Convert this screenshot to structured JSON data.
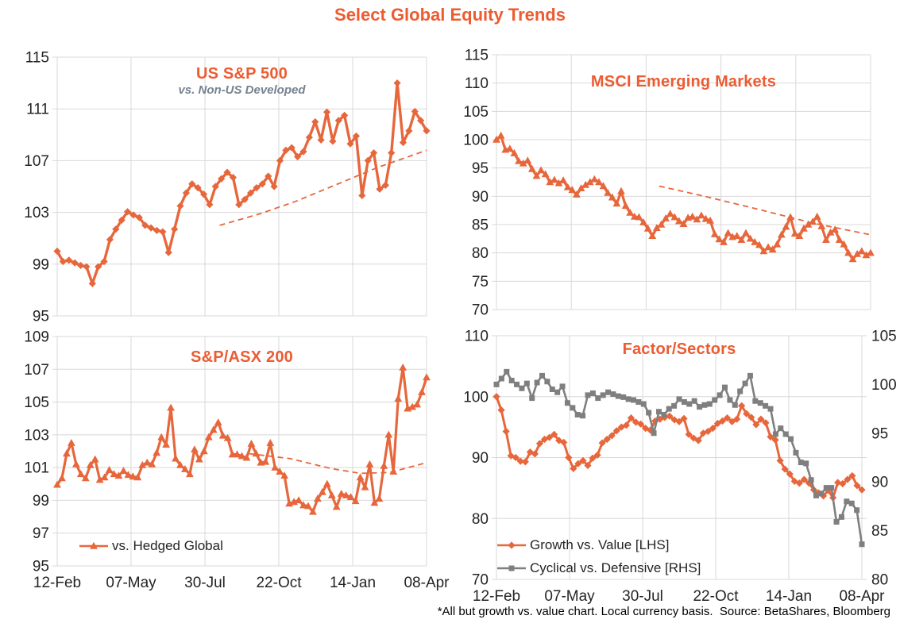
{
  "page_title": "Select Global Equity Trends",
  "footer_note": "*All but growth vs. value chart. Local currency basis.  Source: BetaShares, Bloomberg",
  "colors": {
    "title_orange": "#ED5B31",
    "series_orange": "#E7673C",
    "series_gray": "#7F7F7F",
    "subtitle_gray": "#76828E",
    "gridline": "#D8D8D8",
    "text_dark": "#242424"
  },
  "chart_data": [
    {
      "id": "us-sp500",
      "type": "line",
      "title": "US S&P 500",
      "subtitle": "vs. Non-US Developed",
      "ylim": [
        95,
        115
      ],
      "yticks": [
        95,
        99,
        103,
        107,
        111,
        115
      ],
      "grid": true,
      "show_x_labels": false,
      "series": [
        {
          "name": "US S&P 500 vs. Non-US Developed",
          "axis": "left",
          "color": "#E7673C",
          "marker": "diamond",
          "width": 3.4,
          "values": [
            100.0,
            99.2,
            99.3,
            99.1,
            98.9,
            98.8,
            97.5,
            98.8,
            99.2,
            100.9,
            101.7,
            102.4,
            103.05,
            102.8,
            102.6,
            102.0,
            101.8,
            101.6,
            101.5,
            99.9,
            101.7,
            103.5,
            104.5,
            105.2,
            104.9,
            104.4,
            103.6,
            105.0,
            105.6,
            106.1,
            105.7,
            103.6,
            104.0,
            104.5,
            104.9,
            105.2,
            105.8,
            105.0,
            107.0,
            107.8,
            108.0,
            107.3,
            107.7,
            108.8,
            110.0,
            108.6,
            110.75,
            108.5,
            110.1,
            110.5,
            108.3,
            108.9,
            104.3,
            107.0,
            107.6,
            104.8,
            105.1,
            107.6,
            113.0,
            108.4,
            109.3,
            110.8,
            110.1,
            109.3
          ]
        }
      ],
      "trendline": {
        "style": "dashed",
        "color": "#E7673C",
        "points": [
          [
            0.44,
            102.0
          ],
          [
            0.55,
            102.9
          ],
          [
            0.65,
            103.9
          ],
          [
            0.76,
            105.2
          ],
          [
            0.87,
            106.5
          ],
          [
            1.0,
            107.8
          ]
        ]
      }
    },
    {
      "id": "msci-em",
      "type": "line",
      "title": "MSCI Emerging Markets",
      "ylim": [
        70,
        115
      ],
      "yticks": [
        70,
        75,
        80,
        85,
        90,
        95,
        100,
        105,
        110,
        115
      ],
      "grid": true,
      "show_x_labels": false,
      "series": [
        {
          "name": "MSCI Emerging Markets",
          "axis": "left",
          "color": "#E7673C",
          "marker": "triangle",
          "width": 3.2,
          "values": [
            100.0,
            100.7,
            98.2,
            98.4,
            97.6,
            96.2,
            95.8,
            96.3,
            94.8,
            93.6,
            94.6,
            93.9,
            92.5,
            92.9,
            92.3,
            92.8,
            91.6,
            91.1,
            90.3,
            91.4,
            92.0,
            92.5,
            93.0,
            92.5,
            91.8,
            90.6,
            89.8,
            88.7,
            90.9,
            88.3,
            87.1,
            86.4,
            86.3,
            85.4,
            84.3,
            83.0,
            84.4,
            85.0,
            86.1,
            86.9,
            86.3,
            85.6,
            85.1,
            86.2,
            86.4,
            85.9,
            86.6,
            86.0,
            85.7,
            83.3,
            82.4,
            81.9,
            83.5,
            82.8,
            83.0,
            82.3,
            83.5,
            82.5,
            81.9,
            81.4,
            80.3,
            81.0,
            80.6,
            81.5,
            83.2,
            84.6,
            86.3,
            83.4,
            83.0,
            84.3,
            85.0,
            85.5,
            86.4,
            84.7,
            82.3,
            83.6,
            84.1,
            82.3,
            81.5,
            80.0,
            78.9,
            79.8,
            80.3,
            79.6,
            80.0
          ]
        }
      ],
      "trendline": {
        "style": "dashed",
        "color": "#E7673C",
        "points": [
          [
            0.435,
            91.8
          ],
          [
            0.55,
            90.1
          ],
          [
            0.7,
            87.7
          ],
          [
            0.85,
            85.2
          ],
          [
            1.0,
            83.2
          ]
        ]
      }
    },
    {
      "id": "sp-asx-200",
      "type": "line",
      "title": "S&P/ASX 200",
      "ylim": [
        95,
        109
      ],
      "yticks": [
        95,
        97,
        99,
        101,
        103,
        105,
        107,
        109
      ],
      "grid": true,
      "show_x_labels": true,
      "x_categories": [
        "12-Feb",
        "07-May",
        "30-Jul",
        "22-Oct",
        "14-Jan",
        "08-Apr"
      ],
      "legend": [
        {
          "label": "vs. Hedged Global",
          "series": 0
        }
      ],
      "series": [
        {
          "name": "vs. Hedged Global",
          "axis": "left",
          "color": "#E7673C",
          "marker": "triangle",
          "width": 3.2,
          "values": [
            99.95,
            100.35,
            101.85,
            102.5,
            101.2,
            100.6,
            100.35,
            101.15,
            101.5,
            100.25,
            100.4,
            100.85,
            100.6,
            100.5,
            100.8,
            100.55,
            100.45,
            100.4,
            101.15,
            101.3,
            101.2,
            101.9,
            102.85,
            102.4,
            104.65,
            101.55,
            101.15,
            100.9,
            100.6,
            102.1,
            101.5,
            102.0,
            102.85,
            103.3,
            103.75,
            102.95,
            102.8,
            101.8,
            101.8,
            101.7,
            101.6,
            102.45,
            101.85,
            101.3,
            101.35,
            102.5,
            101.0,
            100.75,
            100.5,
            98.8,
            98.9,
            99.0,
            98.7,
            98.65,
            98.3,
            99.1,
            99.5,
            100.0,
            99.3,
            98.6,
            99.4,
            99.3,
            99.2,
            98.95,
            100.4,
            99.8,
            101.2,
            98.85,
            99.1,
            101.1,
            103.0,
            100.75,
            105.2,
            107.1,
            104.6,
            104.7,
            104.85,
            105.6,
            106.5
          ]
        }
      ],
      "trendline": {
        "style": "dashed",
        "color": "#E7673C",
        "points": [
          [
            0.52,
            101.85
          ],
          [
            0.63,
            101.55
          ],
          [
            0.74,
            100.95
          ],
          [
            0.82,
            100.65
          ],
          [
            0.9,
            100.7
          ],
          [
            1.0,
            101.3
          ]
        ]
      }
    },
    {
      "id": "factor-sectors",
      "type": "line",
      "title": "Factor/Sectors",
      "ylim": [
        70,
        110
      ],
      "yticks": [
        70,
        80,
        90,
        100,
        110
      ],
      "ylim_right": [
        80,
        105
      ],
      "yticks_right": [
        80,
        85,
        90,
        95,
        100,
        105
      ],
      "grid": true,
      "show_x_labels": true,
      "x_categories": [
        "12-Feb",
        "07-May",
        "30-Jul",
        "22-Oct",
        "14-Jan",
        "08-Apr"
      ],
      "legend": [
        {
          "label": "Growth vs. Value [LHS]",
          "series": 0
        },
        {
          "label": "Cyclical vs. Defensive [RHS]",
          "series": 1
        }
      ],
      "series": [
        {
          "name": "Growth vs. Value [LHS]",
          "axis": "left",
          "color": "#E7673C",
          "marker": "diamond",
          "width": 3.0,
          "values": [
            100.0,
            97.8,
            94.3,
            90.3,
            90.0,
            89.4,
            89.3,
            90.9,
            90.6,
            92.3,
            93.0,
            93.3,
            93.8,
            92.8,
            92.5,
            90.0,
            88.2,
            89.0,
            89.5,
            88.7,
            89.9,
            90.4,
            92.4,
            93.0,
            93.6,
            94.4,
            95.0,
            95.3,
            96.5,
            95.8,
            95.5,
            94.8,
            94.5,
            96.0,
            96.3,
            96.6,
            96.8,
            96.2,
            95.9,
            96.4,
            93.8,
            93.2,
            92.8,
            94.0,
            94.3,
            94.8,
            95.6,
            96.0,
            96.5,
            95.9,
            96.3,
            98.5,
            97.2,
            96.6,
            95.4,
            96.3,
            95.7,
            93.4,
            92.9,
            89.5,
            88.1,
            87.3,
            86.1,
            85.8,
            86.4,
            85.8,
            84.7,
            84.2,
            83.7,
            84.6,
            83.4,
            85.9,
            85.7,
            86.4,
            87.0,
            85.4,
            84.7
          ]
        },
        {
          "name": "Cyclical vs. Defensive [RHS]",
          "axis": "right",
          "color": "#7F7F7F",
          "marker": "square",
          "width": 2.6,
          "values": [
            100.0,
            100.6,
            101.3,
            100.4,
            100.0,
            99.6,
            100.1,
            98.6,
            100.2,
            100.9,
            100.3,
            99.5,
            99.2,
            99.8,
            98.1,
            97.6,
            96.9,
            96.8,
            98.9,
            99.1,
            98.6,
            98.9,
            99.2,
            99.0,
            98.8,
            98.7,
            98.5,
            98.4,
            98.2,
            98.0,
            97.1,
            95.0,
            97.2,
            96.9,
            97.5,
            97.8,
            98.5,
            98.2,
            98.0,
            98.3,
            97.7,
            97.9,
            98.0,
            98.4,
            98.9,
            99.7,
            98.4,
            97.9,
            99.3,
            100.1,
            100.9,
            98.3,
            98.1,
            97.8,
            97.5,
            94.9,
            95.5,
            94.9,
            94.4,
            93.0,
            92.0,
            91.9,
            90.2,
            88.6,
            88.8,
            89.4,
            89.4,
            85.9,
            86.4,
            88.0,
            87.8,
            87.1,
            83.6
          ]
        }
      ]
    }
  ]
}
